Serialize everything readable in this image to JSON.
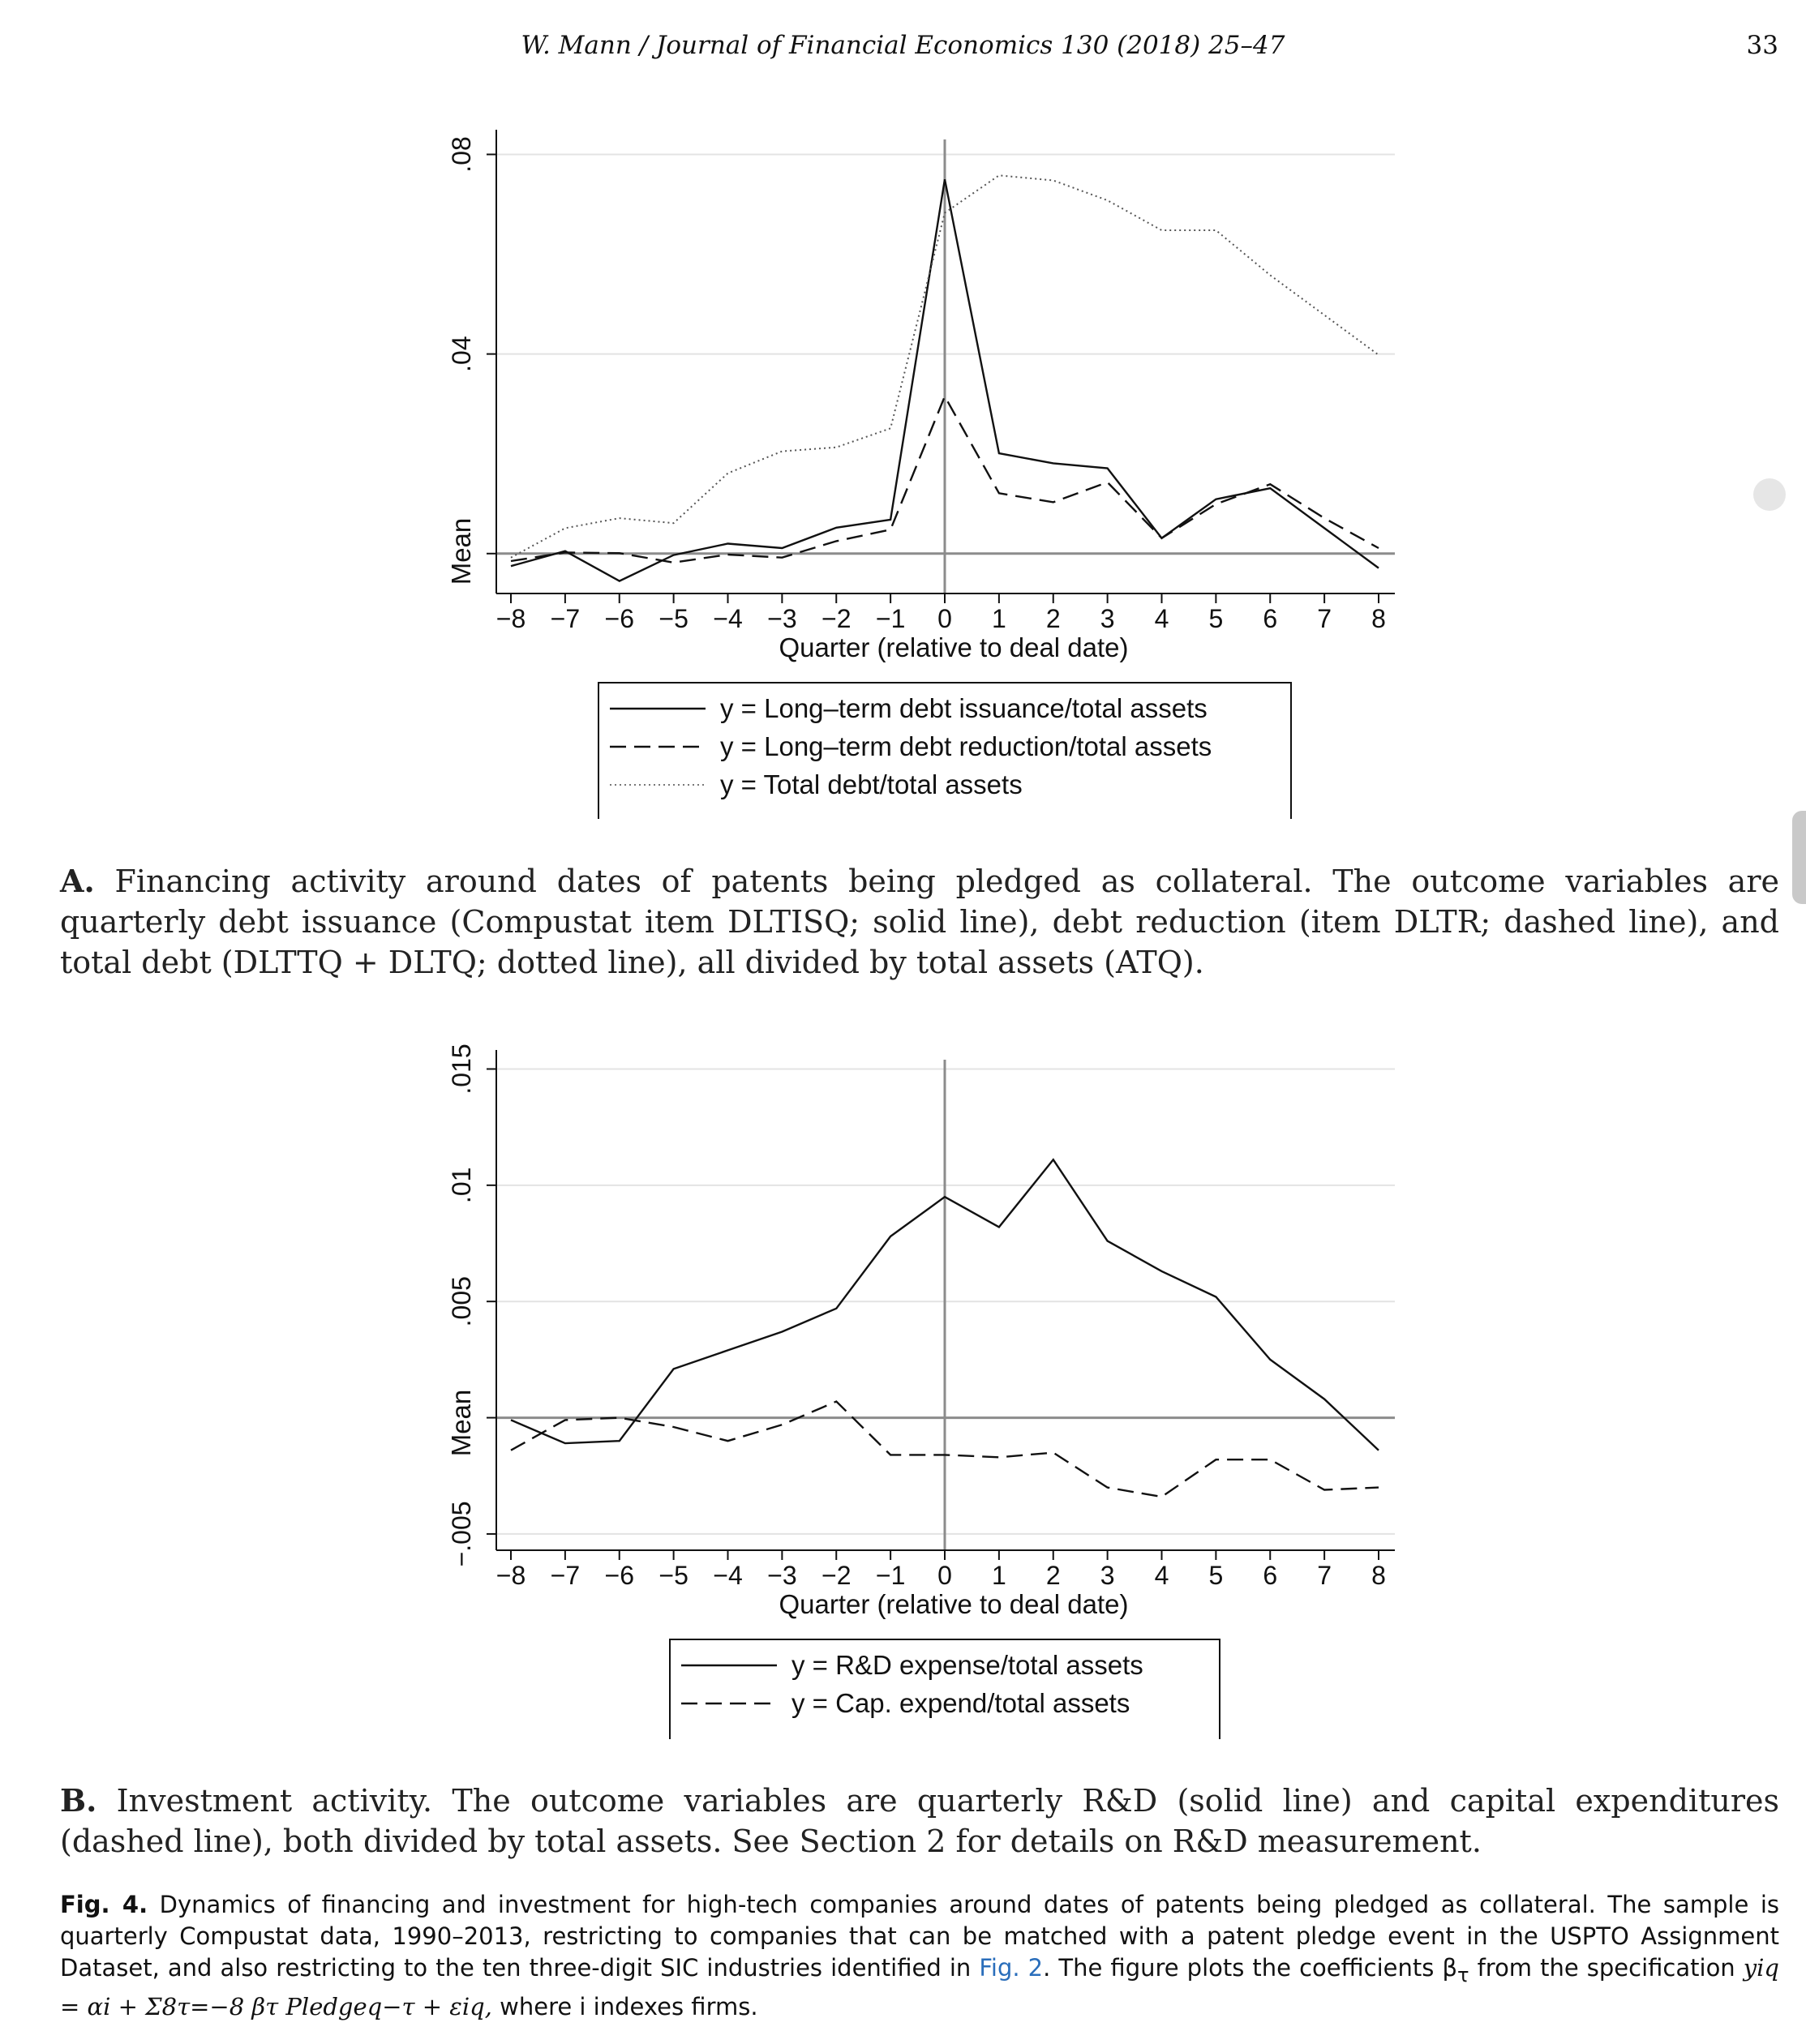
{
  "header": {
    "running_head": "W. Mann / Journal of Financial Economics 130 (2018) 25–47",
    "page_number": "33"
  },
  "chart_data": [
    {
      "type": "line",
      "panel": "A",
      "xlabel": "Quarter (relative to deal date)",
      "ylabel": "Mean",
      "x": [
        -8,
        -7,
        -6,
        -5,
        -4,
        -3,
        -2,
        -1,
        0,
        1,
        2,
        3,
        4,
        5,
        6,
        7,
        8
      ],
      "x_tick_labels": [
        "−8",
        "−7",
        "−6",
        "−5",
        "−4",
        "−3",
        "−2",
        "−1",
        "0",
        "1",
        "2",
        "3",
        "4",
        "5",
        "6",
        "7",
        "8"
      ],
      "y_ticks": [
        0,
        0.04,
        0.08
      ],
      "y_tick_labels": [
        "",
        ".04",
        ".08"
      ],
      "ylim": [
        -0.008,
        0.083
      ],
      "grid": true,
      "reference_lines": {
        "x": 0,
        "y": 0
      },
      "legend_position": "below",
      "series": [
        {
          "name": "y = Long–term debt issuance/total assets",
          "style": "solid",
          "values": [
            -0.0025,
            0.0005,
            -0.0055,
            -0.0003,
            0.002,
            0.0011,
            0.0052,
            0.0068,
            0.075,
            0.0201,
            0.0181,
            0.0171,
            0.0031,
            0.0109,
            0.0131,
            0.0051,
            -0.0029
          ]
        },
        {
          "name": "y = Long–term debt reduction/total assets",
          "style": "dashed",
          "values": [
            -0.0015,
            0.0002,
            0.0001,
            -0.0018,
            -0.0002,
            -0.0008,
            0.0025,
            0.0048,
            0.0315,
            0.0121,
            0.0103,
            0.0143,
            0.0031,
            0.0099,
            0.0139,
            0.0071,
            0.0011
          ]
        },
        {
          "name": "y = Total debt/total assets",
          "style": "dotted",
          "values": [
            -0.0008,
            0.0051,
            0.0071,
            0.0061,
            0.0161,
            0.0205,
            0.0213,
            0.0251,
            0.0683,
            0.0758,
            0.0748,
            0.0708,
            0.0648,
            0.0648,
            0.0558,
            0.0478,
            0.0398
          ]
        }
      ]
    },
    {
      "type": "line",
      "panel": "B",
      "xlabel": "Quarter (relative to deal date)",
      "ylabel": "Mean",
      "x": [
        -8,
        -7,
        -6,
        -5,
        -4,
        -3,
        -2,
        -1,
        0,
        1,
        2,
        3,
        4,
        5,
        6,
        7,
        8
      ],
      "x_tick_labels": [
        "−8",
        "−7",
        "−6",
        "−5",
        "−4",
        "−3",
        "−2",
        "−1",
        "0",
        "1",
        "2",
        "3",
        "4",
        "5",
        "6",
        "7",
        "8"
      ],
      "y_ticks": [
        -0.005,
        0,
        0.005,
        0.01,
        0.015
      ],
      "y_tick_labels": [
        "−.005",
        "",
        ".005",
        ".01",
        ".015"
      ],
      "ylim": [
        -0.0057,
        0.0154
      ],
      "grid": true,
      "reference_lines": {
        "x": 0,
        "y": 0
      },
      "legend_position": "below",
      "series": [
        {
          "name": "y = R&D expense/total assets",
          "style": "solid",
          "values": [
            -0.0001,
            -0.0011,
            -0.001,
            0.0021,
            0.0029,
            0.0037,
            0.0047,
            0.0078,
            0.0095,
            0.0082,
            0.0111,
            0.0076,
            0.0063,
            0.0052,
            0.0025,
            0.0008,
            -0.0014
          ]
        },
        {
          "name": "y = Cap. expend/total assets",
          "style": "dashed",
          "values": [
            -0.0014,
            -0.0001,
            0.0,
            -0.0004,
            -0.001,
            -0.0003,
            0.0007,
            -0.0016,
            -0.0016,
            -0.0017,
            -0.0015,
            -0.003,
            -0.0034,
            -0.0018,
            -0.0018,
            -0.0031,
            -0.003
          ]
        }
      ]
    }
  ],
  "captions": {
    "panel_a_label": "A.",
    "panel_a_text": "Financing activity around dates of patents being pledged as collateral. The outcome variables are quarterly debt issuance (Compustat item DLTISQ; solid line), debt reduction (item DLTR; dashed line), and total debt (DLTTQ + DLTQ; dotted line), all divided by total assets (ATQ).",
    "panel_b_label": "B.",
    "panel_b_text": "Investment activity. The outcome variables are quarterly R&D (solid line) and capital expenditures (dashed line), both divided by total assets. See Section 2 for details on R&D measurement.",
    "fig_label": "Fig. 4.",
    "fig_text_1": "Dynamics of financing and investment for high-tech companies around dates of patents being pledged as collateral. The sample is quarterly Compustat data, 1990–2013, restricting to companies that can be matched with a patent pledge event in the USPTO Assignment Dataset, and also restricting to the ten three-digit SIC industries identified in",
    "fig_link": "Fig. 2",
    "fig_text_2": ". The figure plots the coefficients β",
    "fig_text_3": "τ",
    "fig_text_4": " from the specification ",
    "fig_formula": "yiq = αi + Σ8τ=−8 βτ Pledgeq−τ + εiq,",
    "fig_text_5": " where i indexes firms."
  }
}
